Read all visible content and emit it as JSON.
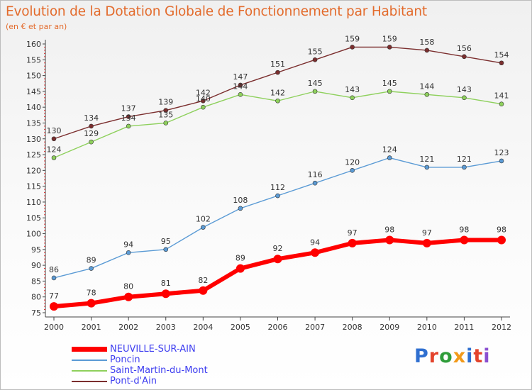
{
  "header": {
    "title": "Evolution de la Dotation Globale de Fonctionnement par Habitant",
    "subtitle": "(en € et par an)"
  },
  "logo": {
    "text": "Proxiti",
    "colors": [
      "#2f6fd0",
      "#e3432c",
      "#2f9d3a",
      "#f29a1a",
      "#2f6fd0",
      "#e3432c",
      "#8a4fd0"
    ]
  },
  "chart_data": {
    "type": "line",
    "x": [
      2000,
      2001,
      2002,
      2003,
      2004,
      2005,
      2006,
      2007,
      2008,
      2009,
      2010,
      2011,
      2012
    ],
    "ylim": [
      75,
      160
    ],
    "yticks": [
      75,
      80,
      85,
      90,
      95,
      100,
      105,
      110,
      115,
      120,
      125,
      130,
      135,
      140,
      145,
      150,
      155,
      160
    ],
    "grid": false,
    "legend_position": "bottom",
    "series": [
      {
        "name": "NEUVILLE-SUR-AIN",
        "color": "#ff0000",
        "values": [
          77,
          78,
          80,
          81,
          82,
          89,
          92,
          94,
          97,
          98,
          97,
          98,
          98
        ]
      },
      {
        "name": "Poncin",
        "color": "#5b9bd5",
        "values": [
          86,
          89,
          94,
          95,
          102,
          108,
          112,
          116,
          120,
          124,
          121,
          121,
          123
        ]
      },
      {
        "name": "Saint-Martin-du-Mont",
        "color": "#8ed05c",
        "values": [
          124,
          129,
          134,
          135,
          140,
          144,
          142,
          145,
          143,
          145,
          144,
          143,
          141
        ]
      },
      {
        "name": "Pont-d'Ain",
        "color": "#7b2e2e",
        "values": [
          130,
          134,
          137,
          139,
          142,
          147,
          151,
          155,
          159,
          159,
          158,
          156,
          154
        ]
      }
    ]
  }
}
